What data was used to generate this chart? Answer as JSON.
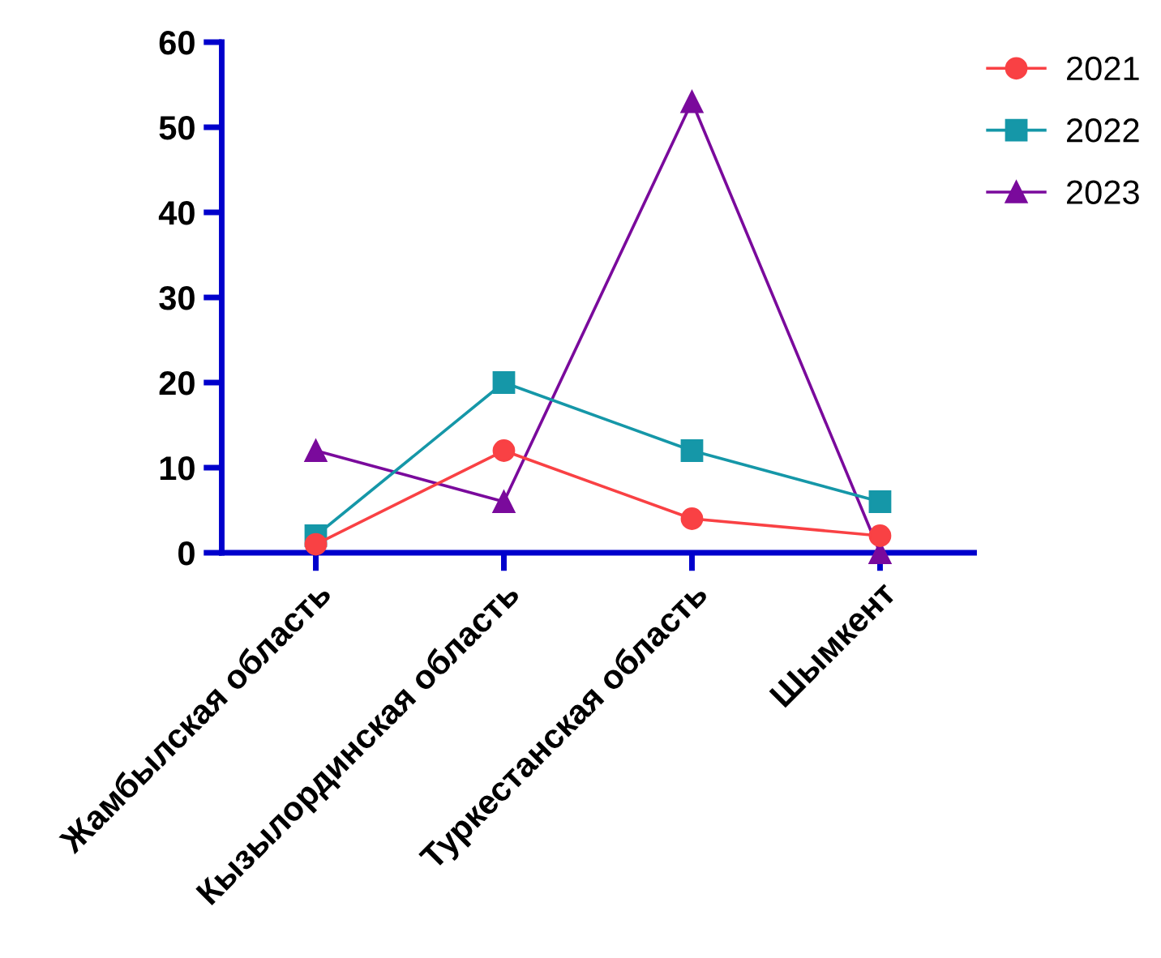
{
  "chart_data": {
    "type": "line",
    "categories": [
      "Жамбылская область",
      "Кызылординская область",
      "Туркестанская область",
      "Шымкент"
    ],
    "series": [
      {
        "name": "2021",
        "color": "#f94144",
        "marker": "circle",
        "values": [
          1,
          12,
          4,
          2
        ]
      },
      {
        "name": "2022",
        "color": "#1597a8",
        "marker": "square",
        "values": [
          2,
          20,
          12,
          6
        ]
      },
      {
        "name": "2023",
        "color": "#7a0a9c",
        "marker": "triangle",
        "values": [
          12,
          6,
          53,
          0
        ]
      }
    ],
    "ylim": [
      0,
      60
    ],
    "yticks": [
      0,
      10,
      20,
      30,
      40,
      50,
      60
    ],
    "grid": false,
    "legend": "top right"
  }
}
